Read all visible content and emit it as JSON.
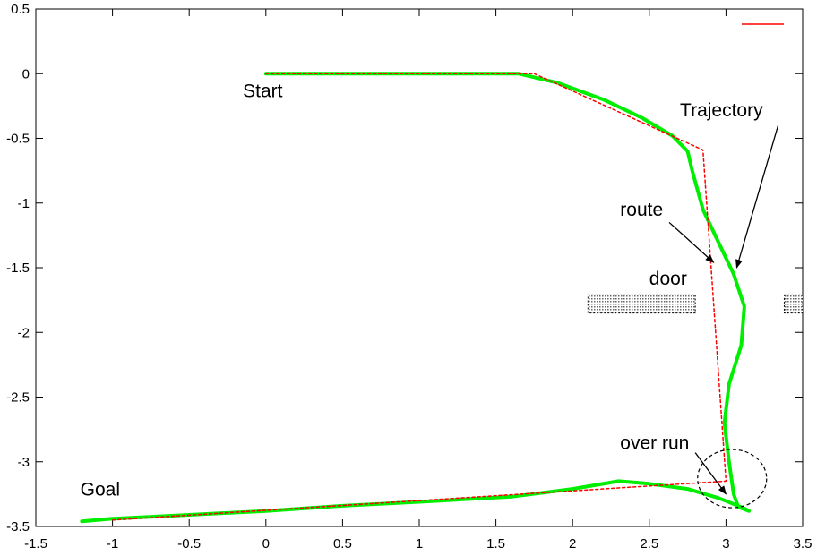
{
  "chart_data": {
    "type": "line",
    "title": "",
    "xlabel": "",
    "ylabel": "",
    "xlim": [
      -1.5,
      3.5
    ],
    "ylim": [
      -3.5,
      0.5
    ],
    "grid": false,
    "x_ticks": [
      "-1.5",
      "-1",
      "-0.5",
      "0",
      "0.5",
      "1",
      "1.5",
      "2",
      "2.5",
      "3",
      "3.5"
    ],
    "y_ticks": [
      "0.5",
      "0",
      "-0.5",
      "-1",
      "-1.5",
      "-2",
      "-2.5",
      "-3",
      "-3.5"
    ],
    "legend": {
      "position": "top-right",
      "entries": [
        {
          "name": "",
          "color": "#ff0000"
        }
      ]
    },
    "series": [
      {
        "key": "route",
        "color": "#ff0000",
        "style": "dashed",
        "points": [
          [
            0,
            0
          ],
          [
            1.75,
            0
          ],
          [
            2.85,
            -0.59
          ],
          [
            3.0,
            -3.15
          ],
          [
            -1.0,
            -3.45
          ]
        ]
      },
      {
        "key": "trajectory",
        "color": "#00ee00",
        "style": "solid",
        "points": [
          [
            0,
            0
          ],
          [
            0.6,
            0
          ],
          [
            1.65,
            0
          ],
          [
            1.9,
            -0.07
          ],
          [
            2.2,
            -0.2
          ],
          [
            2.45,
            -0.34
          ],
          [
            2.65,
            -0.48
          ],
          [
            2.75,
            -0.6
          ],
          [
            2.78,
            -0.75
          ],
          [
            2.85,
            -1.05
          ],
          [
            2.95,
            -1.3
          ],
          [
            3.05,
            -1.55
          ],
          [
            3.12,
            -1.8
          ],
          [
            3.1,
            -2.1
          ],
          [
            3.02,
            -2.4
          ],
          [
            2.99,
            -2.7
          ],
          [
            3.02,
            -3.0
          ],
          [
            3.05,
            -3.25
          ],
          [
            3.08,
            -3.35
          ],
          [
            3.15,
            -3.38
          ],
          [
            3.1,
            -3.35
          ],
          [
            2.95,
            -3.28
          ],
          [
            2.75,
            -3.21
          ],
          [
            2.5,
            -3.17
          ],
          [
            2.3,
            -3.15
          ],
          [
            2.0,
            -3.21
          ],
          [
            1.6,
            -3.27
          ],
          [
            1.0,
            -3.31
          ],
          [
            0.5,
            -3.34
          ],
          [
            0.0,
            -3.38
          ],
          [
            -0.5,
            -3.41
          ],
          [
            -1.0,
            -3.44
          ],
          [
            -1.2,
            -3.46
          ]
        ]
      }
    ],
    "obstacles": [
      {
        "x": [
          2.1,
          2.8
        ],
        "y": [
          -1.85,
          -1.71
        ]
      },
      {
        "x": [
          3.38,
          3.5
        ],
        "y": [
          -1.85,
          -1.71
        ]
      }
    ],
    "annotations": [
      {
        "key": "start",
        "text": "Start",
        "x": -0.15,
        "y": -0.18
      },
      {
        "key": "goal",
        "text": "Goal",
        "x": -1.21,
        "y": -3.26
      },
      {
        "key": "trajectory",
        "text": "Trajectory",
        "x": 2.7,
        "y": -0.33,
        "arrow_from": [
          3.34,
          -0.4
        ],
        "arrow_to": [
          3.07,
          -1.5
        ]
      },
      {
        "key": "route",
        "text": "route",
        "x": 2.31,
        "y": -1.1,
        "arrow_from": [
          2.63,
          -1.15
        ],
        "arrow_to": [
          2.92,
          -1.46
        ]
      },
      {
        "key": "door",
        "text": "door",
        "x": 2.5,
        "y": -1.63
      },
      {
        "key": "overrun",
        "text": "over run",
        "x": 2.31,
        "y": -2.9,
        "arrow_from": [
          2.8,
          -2.93
        ],
        "arrow_to": [
          3.0,
          -3.25
        ]
      }
    ],
    "circle": {
      "cx": 3.04,
      "cy": -3.13,
      "r": 0.225
    }
  }
}
